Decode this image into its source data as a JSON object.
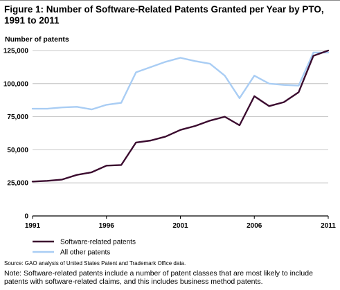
{
  "title": "Figure 1: Number of Software-Related Patents Granted per Year by PTO, 1991 to 2011",
  "source": "Source: GAO analysis of United States Patent and Trademark Office data.",
  "note": "Note: Software-related patents include a number of patent classes that are most likely to include patents with software-related claims, and this includes business method patents.",
  "chart_data": {
    "type": "line",
    "title": "Figure 1: Number of Software-Related Patents Granted per Year by PTO, 1991 to 2011",
    "ylabel": "Number of patents",
    "xlabel": "",
    "ylim": [
      0,
      125000
    ],
    "xlim": [
      1991,
      2011
    ],
    "yticks": [
      0,
      25000,
      50000,
      75000,
      100000,
      125000
    ],
    "ytick_labels": [
      "0",
      "25,000",
      "50,000",
      "75,000",
      "100,000",
      "125,000"
    ],
    "xticks": [
      1991,
      1996,
      2001,
      2006,
      2011
    ],
    "xtick_labels": [
      "1991",
      "1996",
      "2001",
      "2006",
      "2011"
    ],
    "grid": "horizontal",
    "legend_position": "bottom-left",
    "x": [
      1991,
      1992,
      1993,
      1994,
      1995,
      1996,
      1997,
      1998,
      1999,
      2000,
      2001,
      2002,
      2003,
      2004,
      2005,
      2006,
      2007,
      2008,
      2009,
      2010,
      2011
    ],
    "series": [
      {
        "name": "Software-related patents",
        "color": "#3b0b2f",
        "values": [
          26000,
          26500,
          27500,
          31000,
          33000,
          38000,
          38500,
          55500,
          57000,
          60000,
          65000,
          68000,
          72000,
          75000,
          68500,
          90500,
          83000,
          86000,
          93500,
          121000,
          125000
        ]
      },
      {
        "name": "All other patents",
        "color": "#a9cdf4",
        "values": [
          81000,
          81000,
          82000,
          82500,
          80500,
          84000,
          85500,
          108500,
          112500,
          116500,
          119500,
          117000,
          115000,
          106000,
          89000,
          106000,
          100000,
          99000,
          98500,
          123500,
          123500
        ]
      }
    ]
  }
}
